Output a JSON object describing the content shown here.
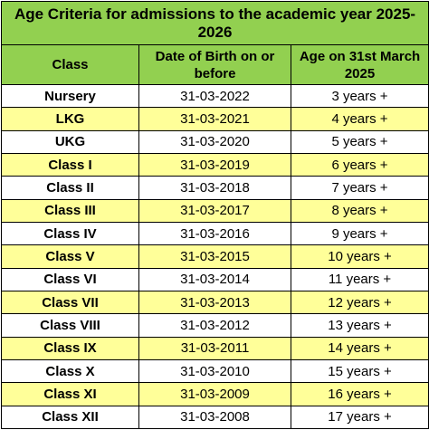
{
  "title": "Age Criteria for admissions to the academic year 2025-2026",
  "colors": {
    "header_green": "#92d050",
    "row_yellow": "#ffff99",
    "row_white": "#ffffff",
    "border": "#000000"
  },
  "columns": [
    "Class",
    "Date of Birth on or before",
    "Age on 31st March 2025"
  ],
  "rows": [
    {
      "class": "Nursery",
      "dob": "31-03-2022",
      "age": "3 years +",
      "shade": "white"
    },
    {
      "class": "LKG",
      "dob": "31-03-2021",
      "age": "4 years +",
      "shade": "yellow"
    },
    {
      "class": "UKG",
      "dob": "31-03-2020",
      "age": "5 years +",
      "shade": "white"
    },
    {
      "class": "Class I",
      "dob": "31-03-2019",
      "age": "6 years +",
      "shade": "yellow"
    },
    {
      "class": "Class II",
      "dob": "31-03-2018",
      "age": "7 years +",
      "shade": "white"
    },
    {
      "class": "Class III",
      "dob": "31-03-2017",
      "age": "8 years +",
      "shade": "yellow"
    },
    {
      "class": "Class IV",
      "dob": "31-03-2016",
      "age": "9 years +",
      "shade": "white"
    },
    {
      "class": "Class V",
      "dob": "31-03-2015",
      "age": "10 years +",
      "shade": "yellow"
    },
    {
      "class": "Class VI",
      "dob": "31-03-2014",
      "age": "11 years +",
      "shade": "white"
    },
    {
      "class": "Class VII",
      "dob": "31-03-2013",
      "age": "12 years +",
      "shade": "yellow"
    },
    {
      "class": "Class VIII",
      "dob": "31-03-2012",
      "age": "13 years +",
      "shade": "white"
    },
    {
      "class": "Class IX",
      "dob": "31-03-2011",
      "age": "14 years +",
      "shade": "yellow"
    },
    {
      "class": "Class X",
      "dob": "31-03-2010",
      "age": "15 years +",
      "shade": "white"
    },
    {
      "class": "Class XI",
      "dob": "31-03-2009",
      "age": "16 years +",
      "shade": "yellow"
    },
    {
      "class": "Class XII",
      "dob": "31-03-2008",
      "age": "17 years +",
      "shade": "white"
    }
  ]
}
